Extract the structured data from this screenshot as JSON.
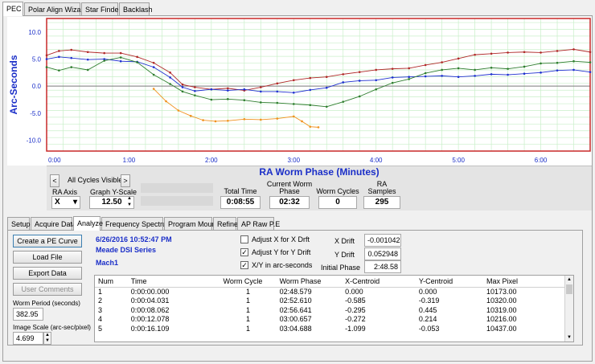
{
  "top_tabs": [
    "PEC",
    "Polar Align Wizard",
    "Star Finder",
    "Backlash"
  ],
  "chart_data": {
    "type": "line",
    "title": "",
    "xlabel": "RA Worm Phase (Minutes)",
    "ylabel": "Arc-Seconds",
    "x_ticks": [
      "0:00",
      "1:00",
      "2:00",
      "3:00",
      "4:00",
      "5:00",
      "6:00"
    ],
    "y_ticks": [
      "10.0",
      "5.0",
      "0.0",
      "-5.0",
      "-10.0"
    ],
    "xlim": [
      0,
      6.6
    ],
    "ylim": [
      -12,
      12.5
    ],
    "grid": true,
    "series": [
      {
        "color": "#b02828",
        "x": [
          0,
          0.15,
          0.3,
          0.5,
          0.7,
          0.9,
          1.1,
          1.3,
          1.5,
          1.65,
          1.8,
          2.0,
          2.2,
          2.4,
          2.6,
          2.8,
          3.0,
          3.2,
          3.4,
          3.6,
          3.8,
          4.0,
          4.2,
          4.4,
          4.6,
          4.8,
          5.0,
          5.2,
          5.4,
          5.6,
          5.8,
          6.0,
          6.2,
          6.4,
          6.6
        ],
        "y": [
          5.7,
          6.5,
          6.7,
          6.3,
          6.1,
          6.1,
          5.4,
          4.3,
          2.5,
          0.3,
          -0.2,
          -0.6,
          -0.4,
          -0.8,
          -0.2,
          0.5,
          1.1,
          1.5,
          1.7,
          2.2,
          2.6,
          3.0,
          3.2,
          3.3,
          3.9,
          4.4,
          5.1,
          5.8,
          6.0,
          6.2,
          6.3,
          6.2,
          6.5,
          6.8,
          6.3
        ]
      },
      {
        "color": "#1f2fd0",
        "x": [
          0,
          0.15,
          0.3,
          0.5,
          0.7,
          0.9,
          1.1,
          1.3,
          1.5,
          1.65,
          1.8,
          2.0,
          2.2,
          2.4,
          2.6,
          2.8,
          3.0,
          3.2,
          3.4,
          3.6,
          3.8,
          4.0,
          4.2,
          4.4,
          4.6,
          4.8,
          5.0,
          5.2,
          5.4,
          5.6,
          5.8,
          6.0,
          6.2,
          6.4,
          6.6
        ],
        "y": [
          5.0,
          5.4,
          5.2,
          4.9,
          5.0,
          4.6,
          4.5,
          3.5,
          1.6,
          -0.2,
          -0.9,
          -0.6,
          -0.8,
          -0.6,
          -1.0,
          -1.0,
          -1.2,
          -0.7,
          -0.3,
          0.7,
          1.0,
          1.1,
          1.6,
          1.7,
          1.8,
          1.9,
          1.7,
          1.9,
          2.2,
          2.1,
          2.3,
          2.5,
          2.9,
          3.0,
          2.6
        ]
      },
      {
        "color": "#2e7d2e",
        "x": [
          0,
          0.15,
          0.3,
          0.5,
          0.7,
          0.9,
          1.1,
          1.3,
          1.5,
          1.65,
          1.8,
          2.0,
          2.2,
          2.4,
          2.6,
          2.8,
          3.0,
          3.2,
          3.4,
          3.6,
          3.8,
          4.0,
          4.2,
          4.4,
          4.6,
          4.8,
          5.0,
          5.2,
          5.4,
          5.6,
          5.8,
          6.0,
          6.2,
          6.4,
          6.6
        ],
        "y": [
          3.5,
          2.9,
          3.5,
          3.0,
          4.7,
          5.3,
          4.4,
          2.1,
          0.4,
          -1.0,
          -1.7,
          -2.5,
          -2.4,
          -2.6,
          -3.0,
          -3.1,
          -3.3,
          -3.5,
          -3.8,
          -2.9,
          -1.9,
          -0.6,
          0.6,
          1.3,
          2.4,
          3.0,
          3.3,
          3.0,
          3.4,
          3.2,
          3.6,
          4.2,
          4.3,
          4.6,
          4.4
        ]
      },
      {
        "color": "#f0921e",
        "x": [
          1.3,
          1.45,
          1.6,
          1.75,
          1.9,
          2.05,
          2.2,
          2.4,
          2.6,
          2.8,
          3.0,
          3.1,
          3.2,
          3.3
        ],
        "y": [
          -0.5,
          -2.8,
          -4.5,
          -5.5,
          -6.3,
          -6.5,
          -6.4,
          -6.1,
          -6.2,
          -6.0,
          -5.6,
          -6.5,
          -7.5,
          -7.6
        ]
      }
    ]
  },
  "cycles": {
    "prev": "<",
    "label": "All Cycles Visible",
    "next": ">"
  },
  "ra_axis": {
    "label": "RA Axis",
    "value": "X"
  },
  "graph_y_scale": {
    "label": "Graph Y-Scale",
    "value": "12.50"
  },
  "stats": [
    {
      "label": "Total Time",
      "value": "0:08:55"
    },
    {
      "label": "Current Worm\nPhase",
      "value": "02:32"
    },
    {
      "label": "Worm Cycles",
      "value": "0"
    },
    {
      "label": "RA\nSamples",
      "value": "295"
    }
  ],
  "sub_tabs": [
    "Setup",
    "Acquire Data",
    "Analyze",
    "Frequency Spectrum",
    "Program Mount",
    "Refine",
    "AP Raw P.E"
  ],
  "buttons": {
    "create": "Create a PE Curve",
    "load": "Load File",
    "export": "Export Data",
    "comments": "User Comments"
  },
  "worm_period": {
    "label": "Worm Period (seconds)",
    "value": "382.95"
  },
  "image_scale": {
    "label": "Image Scale (arc-sec/pixel)",
    "value": "4.699"
  },
  "info": {
    "datetime": "6/26/2016 10:52:47 PM",
    "camera": "Meade DSI Series",
    "mount": "Mach1"
  },
  "options": {
    "adj_x": {
      "label": "Adjust X for X Drft",
      "checked": ""
    },
    "adj_y": {
      "label": "Adjust Y for Y Drift",
      "checked": "✓"
    },
    "xy_arc": {
      "label": "X/Y in arc-seconds",
      "checked": "✓"
    }
  },
  "drift": {
    "x_label": "X Drift",
    "x_value": "-0.001042",
    "y_label": "Y Drift",
    "y_value": "0.052948",
    "phase_label": "Initial Phase",
    "phase_value": "2:48.58"
  },
  "table": {
    "headers": [
      "Num",
      "Time",
      "Worm Cycle",
      "Worm Phase",
      "X-Centroid",
      "Y-Centroid",
      "Max Pixel"
    ],
    "rows": [
      [
        "1",
        "0:00:00.000",
        "1",
        "02:48.579",
        "0.000",
        "0.000",
        "10173.00"
      ],
      [
        "2",
        "0:00:04.031",
        "1",
        "02:52.610",
        "-0.585",
        "-0.319",
        "10320.00"
      ],
      [
        "3",
        "0:00:08.062",
        "1",
        "02:56.641",
        "-0.295",
        "0.445",
        "10319.00"
      ],
      [
        "4",
        "0:00:12.078",
        "1",
        "03:00.657",
        "-0.272",
        "0.214",
        "10216.00"
      ],
      [
        "5",
        "0:00:16.109",
        "1",
        "03:04.688",
        "-1.099",
        "-0.053",
        "10437.00"
      ]
    ]
  }
}
